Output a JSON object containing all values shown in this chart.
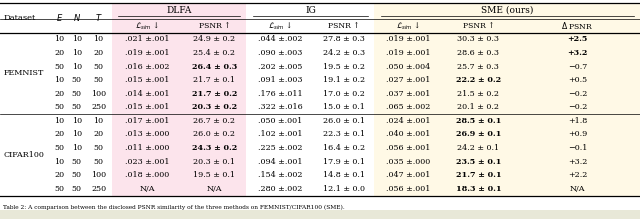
{
  "femnist_rows": [
    [
      "10",
      "10",
      "10",
      ".021 ±.001",
      "24.9 ± 0.2",
      ".044 ±.002",
      "27.8 ± 0.3",
      ".019 ±.001",
      "30.3 ± 0.3",
      "+2.5"
    ],
    [
      "20",
      "10",
      "20",
      ".019 ±.001",
      "25.4 ± 0.2",
      ".090 ±.003",
      "24.2 ± 0.3",
      ".019 ±.001",
      "28.6 ± 0.3",
      "+3.2"
    ],
    [
      "50",
      "10",
      "50",
      ".016 ±.002",
      "26.4 ± 0.3",
      ".202 ±.005",
      "19.5 ± 0.2",
      ".050 ±.004",
      "25.7 ± 0.3",
      "−0.7"
    ],
    [
      "10",
      "50",
      "50",
      ".015 ±.001",
      "21.7 ± 0.1",
      ".091 ±.003",
      "19.1 ± 0.2",
      ".027 ±.001",
      "22.2 ± 0.2",
      "+0.5"
    ],
    [
      "20",
      "50",
      "100",
      ".014 ±.001",
      "21.7 ± 0.2",
      ".176 ±.011",
      "17.0 ± 0.2",
      ".037 ±.001",
      "21.5 ± 0.2",
      "−0.2"
    ],
    [
      "50",
      "50",
      "250",
      ".015 ±.001",
      "20.3 ± 0.2",
      ".322 ±.016",
      "15.0 ± 0.1",
      ".065 ±.002",
      "20.1 ± 0.2",
      "−0.2"
    ]
  ],
  "cifar_rows": [
    [
      "10",
      "10",
      "10",
      ".017 ±.001",
      "26.7 ± 0.2",
      ".050 ±.001",
      "26.0 ± 0.1",
      ".024 ±.001",
      "28.5 ± 0.1",
      "+1.8"
    ],
    [
      "20",
      "10",
      "20",
      ".013 ±.000",
      "26.0 ± 0.2",
      ".102 ±.001",
      "22.3 ± 0.1",
      ".040 ±.001",
      "26.9 ± 0.1",
      "+0.9"
    ],
    [
      "50",
      "10",
      "50",
      ".011 ±.000",
      "24.3 ± 0.2",
      ".225 ±.002",
      "16.4 ± 0.2",
      ".056 ±.001",
      "24.2 ± 0.1",
      "−0.1"
    ],
    [
      "10",
      "50",
      "50",
      ".023 ±.001",
      "20.3 ± 0.1",
      ".094 ±.001",
      "17.9 ± 0.1",
      ".035 ±.000",
      "23.5 ± 0.1",
      "+3.2"
    ],
    [
      "20",
      "50",
      "100",
      ".018 ±.000",
      "19.5 ± 0.1",
      ".154 ±.002",
      "14.8 ± 0.1",
      ".047 ±.001",
      "21.7 ± 0.1",
      "+2.2"
    ],
    [
      "50",
      "50",
      "250",
      "N/A",
      "N/A",
      ".280 ±.002",
      "12.1 ± 0.0",
      ".056 ±.001",
      "18.3 ± 0.1",
      "N/A"
    ]
  ],
  "bold_femnist": [
    [
      false,
      false,
      false,
      false,
      false,
      false,
      true,
      false
    ],
    [
      false,
      false,
      false,
      false,
      false,
      false,
      true,
      false
    ],
    [
      false,
      true,
      false,
      false,
      false,
      false,
      false,
      false
    ],
    [
      false,
      false,
      false,
      false,
      false,
      true,
      false,
      false
    ],
    [
      false,
      true,
      false,
      false,
      false,
      false,
      false,
      false
    ],
    [
      false,
      true,
      false,
      false,
      false,
      false,
      false,
      false
    ]
  ],
  "bold_cifar": [
    [
      false,
      false,
      false,
      false,
      false,
      true,
      false,
      false
    ],
    [
      false,
      false,
      false,
      false,
      false,
      true,
      false,
      false
    ],
    [
      false,
      true,
      false,
      false,
      false,
      false,
      false,
      false
    ],
    [
      false,
      false,
      false,
      false,
      false,
      true,
      false,
      false
    ],
    [
      false,
      false,
      false,
      false,
      false,
      true,
      false,
      false
    ],
    [
      false,
      false,
      false,
      false,
      false,
      true,
      false,
      false
    ]
  ],
  "dlfa_bg": "#fce4ec",
  "sme_bg": "#fff9e6",
  "caption": "Table 2: A comparison between the disclosed PSNR similarity of the three methods on FEMNIST/CIFAR100 (SME)."
}
